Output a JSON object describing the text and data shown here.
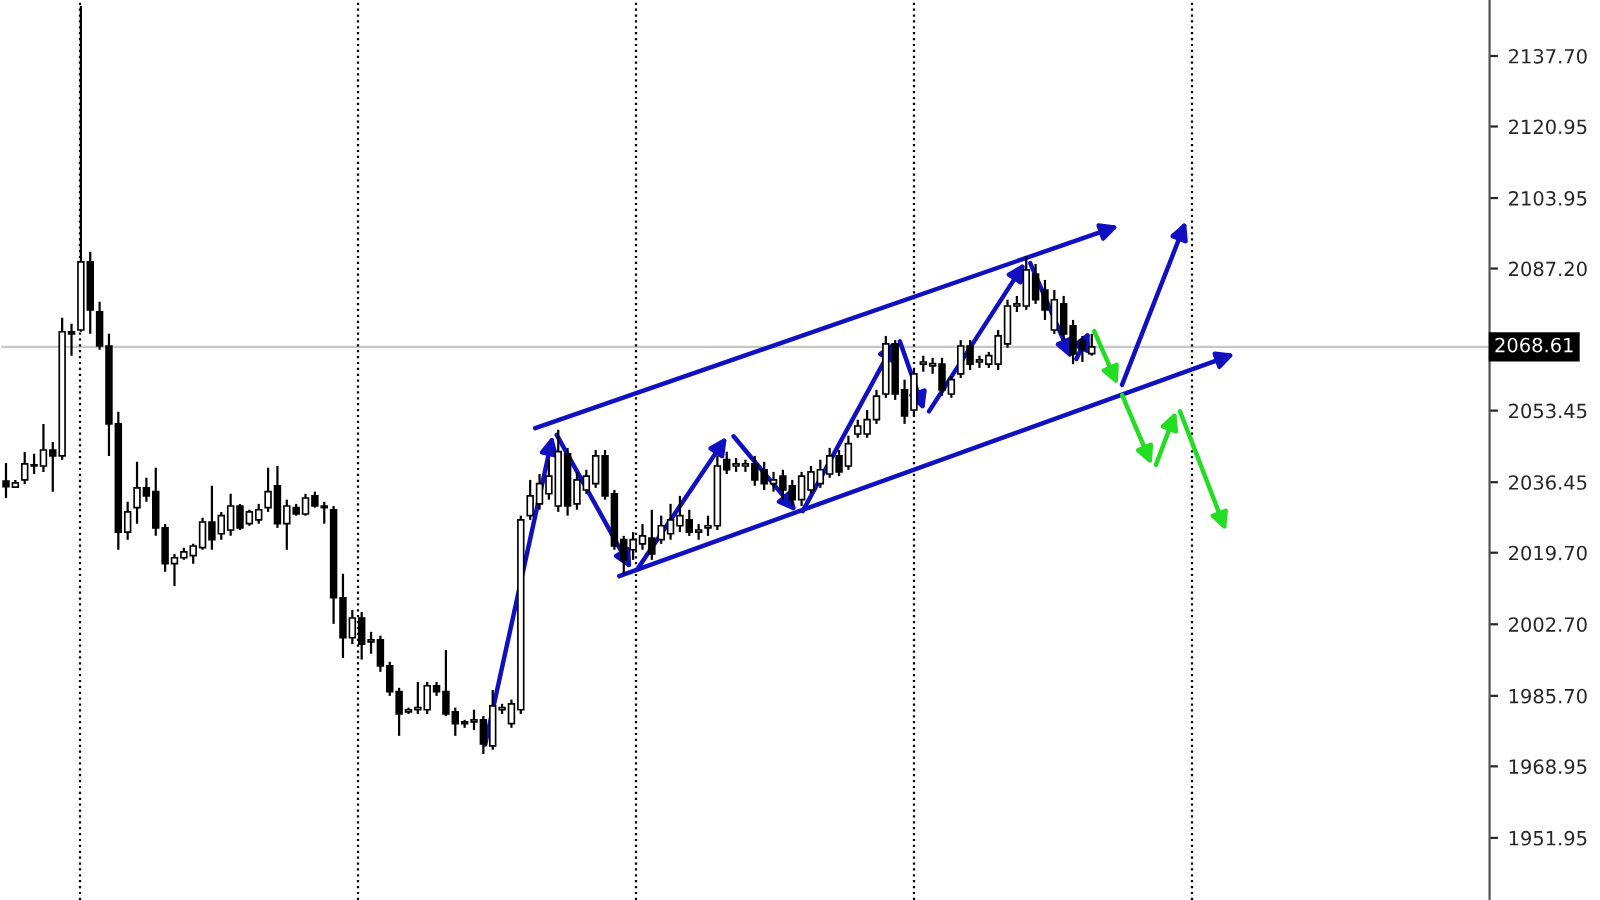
{
  "chart_data": {
    "type": "candlestick",
    "categories": [
      null,
      null,
      null,
      null,
      null,
      null,
      null,
      null,
      null,
      null,
      null,
      null,
      null,
      null,
      null,
      null,
      null,
      null,
      null,
      null,
      null,
      null,
      null,
      null,
      null,
      null,
      null,
      null,
      null,
      null,
      null,
      null,
      null,
      null,
      null,
      null,
      null,
      null,
      null,
      null,
      null,
      null,
      null,
      null,
      null,
      null,
      null,
      null,
      null,
      null,
      null,
      null,
      null,
      null,
      null,
      null,
      null,
      null,
      null,
      null,
      null,
      null,
      null,
      null,
      null,
      null,
      null,
      null,
      null,
      null,
      null,
      null,
      null,
      null,
      null,
      null,
      null,
      null,
      null,
      null,
      null,
      null,
      null,
      null,
      null,
      null,
      null,
      null,
      null,
      null,
      null,
      null,
      null,
      null,
      null,
      null,
      null,
      null,
      null,
      null,
      null,
      null,
      null,
      null,
      null,
      null,
      null,
      null,
      null,
      null,
      null,
      null,
      null,
      null,
      null,
      null,
      null,
      null,
      null,
      null,
      null,
      null,
      null,
      null,
      null,
      null,
      null,
      null,
      null,
      null,
      null,
      null,
      null,
      null,
      null,
      null,
      null,
      null,
      null,
      null,
      null,
      null,
      null,
      null,
      null,
      null,
      null,
      null,
      null,
      null,
      null,
      null,
      null,
      null,
      null,
      null,
      null,
      null,
      null
    ],
    "ohlc": [
      [
        2036.7,
        2041.0,
        2032.7,
        2035.4
      ],
      [
        2035.3,
        2037.0,
        2035.1,
        2036.3
      ],
      [
        2037.0,
        2043.6,
        2036.0,
        2040.8
      ],
      [
        2040.3,
        2043.2,
        2038.4,
        2040.6
      ],
      [
        2040.3,
        2050.3,
        2038.9,
        2044.1
      ],
      [
        2044.1,
        2046.0,
        2034.2,
        2042.7
      ],
      [
        2042.7,
        2075.5,
        2041.8,
        2072.2
      ],
      [
        2072.2,
        2074.1,
        2066.5,
        2071.7
      ],
      [
        2072.6,
        2149.6,
        2072.2,
        2088.8
      ],
      [
        2088.8,
        2091.2,
        2071.7,
        2077.4
      ],
      [
        2076.9,
        2079.3,
        2067.9,
        2068.8
      ],
      [
        2068.8,
        2071.7,
        2042.7,
        2050.3
      ],
      [
        2050.3,
        2053.2,
        2020.4,
        2024.6
      ],
      [
        2024.6,
        2031.8,
        2022.8,
        2029.4
      ],
      [
        2030.4,
        2041.3,
        2026.6,
        2035.1
      ],
      [
        2035.1,
        2037.5,
        2031.8,
        2033.2
      ],
      [
        2034.2,
        2039.9,
        2023.7,
        2025.6
      ],
      [
        2025.6,
        2026.5,
        2015.2,
        2017.1
      ],
      [
        2017.1,
        2019.4,
        2011.8,
        2018.5
      ],
      [
        2018.5,
        2020.9,
        2018.0,
        2019.9
      ],
      [
        2019.0,
        2021.8,
        2017.1,
        2021.3
      ],
      [
        2020.9,
        2028.0,
        2020.4,
        2027.0
      ],
      [
        2027.0,
        2035.6,
        2020.4,
        2022.8
      ],
      [
        2024.2,
        2029.4,
        2022.8,
        2028.5
      ],
      [
        2025.1,
        2033.7,
        2023.7,
        2030.8
      ],
      [
        2030.8,
        2031.3,
        2025.1,
        2025.6
      ],
      [
        2026.6,
        2029.9,
        2026.1,
        2029.4
      ],
      [
        2027.5,
        2031.3,
        2026.6,
        2029.9
      ],
      [
        2030.4,
        2039.9,
        2029.4,
        2034.2
      ],
      [
        2035.6,
        2040.3,
        2025.6,
        2026.6
      ],
      [
        2026.6,
        2032.3,
        2020.4,
        2030.8
      ],
      [
        2030.4,
        2031.3,
        2028.5,
        2028.9
      ],
      [
        2028.9,
        2033.7,
        2028.5,
        2032.7
      ],
      [
        2033.2,
        2034.2,
        2030.4,
        2030.8
      ],
      [
        2030.8,
        2031.8,
        2026.6,
        2030.4
      ],
      [
        2029.9,
        2030.8,
        2002.8,
        2009.0
      ],
      [
        2009.0,
        2014.7,
        1994.7,
        1999.5
      ],
      [
        1999.5,
        2006.1,
        1998.0,
        2004.2
      ],
      [
        2004.2,
        2005.6,
        1994.3,
        1998.0
      ],
      [
        1998.5,
        2000.9,
        1995.7,
        1999.0
      ],
      [
        1999.0,
        2000.0,
        1991.4,
        1992.8
      ],
      [
        1992.8,
        1993.8,
        1985.7,
        1986.7
      ],
      [
        1986.7,
        1987.6,
        1976.2,
        1981.4
      ],
      [
        1981.9,
        1982.9,
        1981.4,
        1982.4
      ],
      [
        1982.4,
        1989.0,
        1981.4,
        1982.9
      ],
      [
        1982.4,
        1989.0,
        1981.4,
        1988.1
      ],
      [
        1988.1,
        1989.0,
        1985.7,
        1986.7
      ],
      [
        1986.7,
        1996.6,
        1980.9,
        1981.4
      ],
      [
        1981.9,
        1982.9,
        1976.2,
        1979.1
      ],
      [
        1979.1,
        1980.0,
        1978.1,
        1979.5
      ],
      [
        1979.5,
        1982.4,
        1977.6,
        1980.0
      ],
      [
        1980.0,
        1980.9,
        1971.9,
        1974.3
      ],
      [
        1973.8,
        1987.1,
        1972.9,
        1983.3
      ],
      [
        1982.4,
        1983.8,
        1981.4,
        1982.9
      ],
      [
        1979.1,
        1984.8,
        1978.1,
        1983.8
      ],
      [
        1982.4,
        2028.5,
        1981.4,
        2027.5
      ],
      [
        2028.5,
        2037.0,
        2027.5,
        2033.2
      ],
      [
        2031.3,
        2038.4,
        2029.9,
        2036.1
      ],
      [
        2033.7,
        2041.8,
        2032.3,
        2037.9
      ],
      [
        2030.8,
        2048.9,
        2029.4,
        2043.7
      ],
      [
        2043.2,
        2044.6,
        2028.5,
        2030.8
      ],
      [
        2031.3,
        2038.9,
        2029.9,
        2037.0
      ],
      [
        2034.6,
        2039.4,
        2033.7,
        2037.9
      ],
      [
        2036.1,
        2044.1,
        2035.1,
        2042.7
      ],
      [
        2042.7,
        2044.1,
        2032.3,
        2033.2
      ],
      [
        2033.7,
        2034.6,
        2020.4,
        2021.3
      ],
      [
        2022.8,
        2023.7,
        2014.7,
        2018.0
      ],
      [
        2020.4,
        2024.6,
        2018.0,
        2022.8
      ],
      [
        2021.8,
        2026.5,
        2020.4,
        2023.7
      ],
      [
        2023.2,
        2029.9,
        2018.0,
        2019.4
      ],
      [
        2022.8,
        2028.5,
        2021.8,
        2026.1
      ],
      [
        2024.2,
        2031.3,
        2022.8,
        2027.5
      ],
      [
        2026.1,
        2033.2,
        2024.6,
        2028.5
      ],
      [
        2027.5,
        2029.9,
        2023.7,
        2024.6
      ],
      [
        2024.6,
        2026.5,
        2022.8,
        2025.1
      ],
      [
        2025.6,
        2028.5,
        2023.7,
        2026.1
      ],
      [
        2026.1,
        2042.7,
        2025.1,
        2040.3
      ],
      [
        2041.8,
        2043.7,
        2038.4,
        2039.4
      ],
      [
        2040.3,
        2042.2,
        2038.9,
        2040.8
      ],
      [
        2040.3,
        2041.8,
        2038.9,
        2040.8
      ],
      [
        2040.8,
        2042.7,
        2035.6,
        2037.0
      ],
      [
        2039.4,
        2041.3,
        2034.6,
        2036.1
      ],
      [
        2036.1,
        2038.9,
        2034.2,
        2037.0
      ],
      [
        2037.9,
        2039.4,
        2032.3,
        2034.6
      ],
      [
        2035.6,
        2037.0,
        2030.8,
        2032.3
      ],
      [
        2032.3,
        2038.9,
        2030.8,
        2037.9
      ],
      [
        2034.6,
        2040.3,
        2033.7,
        2038.9
      ],
      [
        2036.1,
        2041.8,
        2035.1,
        2039.4
      ],
      [
        2038.4,
        2044.6,
        2037.5,
        2042.7
      ],
      [
        2042.7,
        2044.1,
        2037.9,
        2038.9
      ],
      [
        2040.3,
        2047.5,
        2039.4,
        2045.6
      ],
      [
        2047.9,
        2051.3,
        2047.0,
        2049.8
      ],
      [
        2047.9,
        2053.6,
        2047.0,
        2051.3
      ],
      [
        2051.3,
        2058.4,
        2050.3,
        2056.9
      ],
      [
        2057.4,
        2071.2,
        2056.5,
        2069.3
      ],
      [
        2069.3,
        2070.2,
        2056.0,
        2057.4
      ],
      [
        2058.4,
        2060.8,
        2050.3,
        2052.2
      ],
      [
        2053.6,
        2063.2,
        2052.2,
        2062.2
      ],
      [
        2064.5,
        2066.5,
        2062.7,
        2065.0
      ],
      [
        2064.1,
        2066.0,
        2062.2,
        2064.6
      ],
      [
        2064.5,
        2066.0,
        2057.0,
        2058.4
      ],
      [
        2057.4,
        2061.7,
        2056.5,
        2060.8
      ],
      [
        2062.2,
        2070.2,
        2061.2,
        2068.8
      ],
      [
        2068.8,
        2070.2,
        2063.1,
        2064.5
      ],
      [
        2065.0,
        2066.5,
        2063.6,
        2065.5
      ],
      [
        2064.5,
        2067.4,
        2063.6,
        2066.5
      ],
      [
        2064.5,
        2072.6,
        2063.1,
        2071.2
      ],
      [
        2069.3,
        2079.8,
        2068.4,
        2078.3
      ],
      [
        2078.3,
        2080.7,
        2076.9,
        2078.8
      ],
      [
        2078.3,
        2090.2,
        2077.4,
        2086.9
      ],
      [
        2085.9,
        2088.3,
        2078.8,
        2079.8
      ],
      [
        2082.1,
        2084.5,
        2075.0,
        2077.4
      ],
      [
        2072.6,
        2082.1,
        2071.7,
        2079.8
      ],
      [
        2078.8,
        2080.7,
        2070.2,
        2071.7
      ],
      [
        2073.6,
        2075.0,
        2064.5,
        2066.9
      ],
      [
        2070.2,
        2071.2,
        2065.0,
        2068.0
      ],
      [
        2067.0,
        2071.7,
        2066.5,
        2068.61
      ],
      null,
      null,
      null,
      null,
      null,
      null,
      null,
      null,
      null,
      null,
      null,
      null,
      null,
      null,
      null,
      null,
      null,
      null,
      null,
      null,
      null,
      null,
      null,
      null,
      null,
      null,
      null,
      null,
      null,
      null,
      null,
      null,
      null,
      null,
      null,
      null,
      null,
      null,
      null,
      null,
      null,
      null
    ],
    "ylim": [
      1937.2,
      2151.0
    ],
    "yticks": [
      {
        "value": 2137.7,
        "label": "2137.70"
      },
      {
        "value": 2120.95,
        "label": "2120.95"
      },
      {
        "value": 2103.95,
        "label": "2103.95"
      },
      {
        "value": 2087.2,
        "label": "2087.20"
      },
      {
        "value": 2053.45,
        "label": "2053.45"
      },
      {
        "value": 2036.45,
        "label": "2036.45"
      },
      {
        "value": 2019.7,
        "label": "2019.70"
      },
      {
        "value": 2002.7,
        "label": "2002.70"
      },
      {
        "value": 1985.7,
        "label": "1985.70"
      },
      {
        "value": 1968.95,
        "label": "1968.95"
      },
      {
        "value": 1951.95,
        "label": "1951.95"
      }
    ],
    "tick_labels": "y",
    "ref_lines": [
      {
        "axis": "y",
        "value": 2068.61,
        "label": "2068.61",
        "color": "#c8c8c8",
        "line_style": "solid"
      }
    ]
  }
}
